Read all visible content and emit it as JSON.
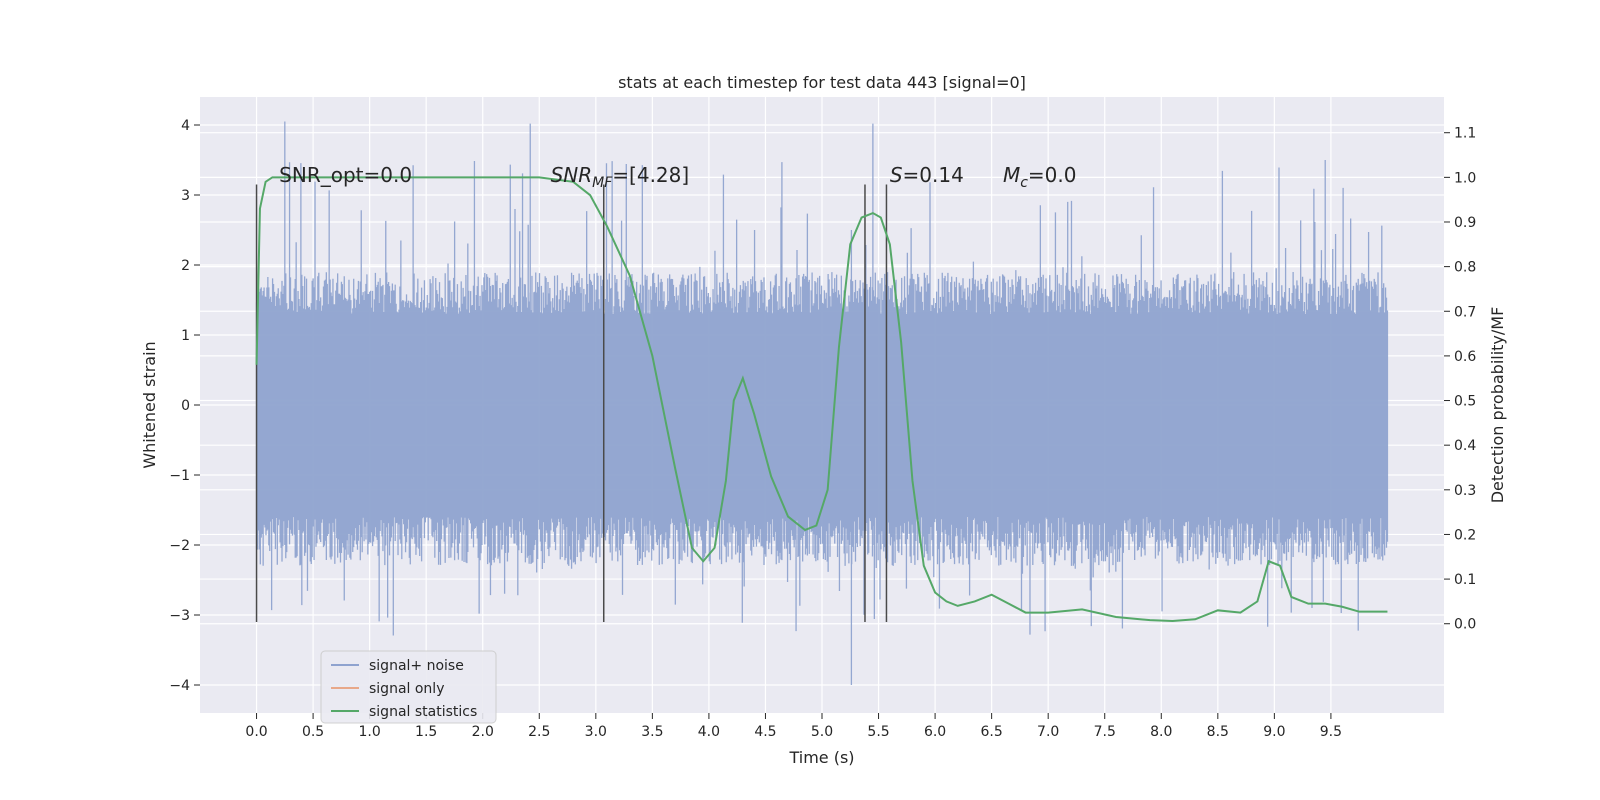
{
  "chart_data": {
    "type": "line",
    "title": "stats at each timestep for test data 443 [signal=0]",
    "xlabel": "Time (s)",
    "ylabel": "Whitened strain",
    "ylabel_right": "Detection probability/MF",
    "xlim": [
      -0.5,
      10.5
    ],
    "ylim": [
      -4.4,
      4.4
    ],
    "ylim_right": [
      -0.2,
      1.18
    ],
    "grid": true,
    "legend_position": "lower-left",
    "x_ticks": [
      0.0,
      0.5,
      1.0,
      1.5,
      2.0,
      2.5,
      3.0,
      3.5,
      4.0,
      4.5,
      5.0,
      5.5,
      6.0,
      6.5,
      7.0,
      7.5,
      8.0,
      8.5,
      9.0,
      9.5
    ],
    "x_tick_labels": [
      "0.0",
      "0.5",
      "1.0",
      "1.5",
      "2.0",
      "2.5",
      "3.0",
      "3.5",
      "4.0",
      "4.5",
      "5.0",
      "5.5",
      "6.0",
      "6.5",
      "7.0",
      "7.5",
      "8.0",
      "8.5",
      "9.0",
      "9.5"
    ],
    "y_ticks": [
      -4,
      -3,
      -2,
      -1,
      0,
      1,
      2,
      3,
      4
    ],
    "y_tick_labels": [
      "−4",
      "−3",
      "−2",
      "−1",
      "0",
      "1",
      "2",
      "3",
      "4"
    ],
    "y_right_ticks": [
      0.0,
      0.1,
      0.2,
      0.3,
      0.4,
      0.5,
      0.6,
      0.7,
      0.8,
      0.9,
      1.0,
      1.1
    ],
    "y_right_tick_labels": [
      "0.0",
      "0.1",
      "0.2",
      "0.3",
      "0.4",
      "0.5",
      "0.6",
      "0.7",
      "0.8",
      "0.9",
      "1.0",
      "1.1"
    ],
    "annotations": [
      {
        "text": "SNR_opt=0.0",
        "x": 0.2,
        "y": 3.3
      },
      {
        "text": "SNR",
        "sub": "MF",
        "suffix": "=[4.28]",
        "x": 2.6,
        "y": 3.3
      },
      {
        "text": "S",
        "suffix": "=0.14",
        "x": 5.6,
        "y": 3.3
      },
      {
        "text": "M",
        "sub": "c",
        "suffix": "=0.0",
        "x": 6.6,
        "y": 3.3
      }
    ],
    "vertical_lines": [
      0.0,
      3.07,
      5.38,
      5.57
    ],
    "vertical_line_range": [
      -3.1,
      3.15
    ],
    "series": [
      {
        "name": "signal+ noise",
        "color": "#8fa3cf",
        "kind": "noise",
        "x_range": [
          0.0,
          10.0
        ],
        "typical_range": [
          -1.6,
          1.3
        ],
        "extreme_range": [
          -4.0,
          4.05
        ],
        "peak_y": [
          4.05,
          4.02,
          4.02
        ],
        "peak_x": [
          0.25,
          2.42,
          5.45
        ]
      },
      {
        "name": "signal only",
        "color": "#e8a889",
        "values": []
      },
      {
        "name": "signal statistics",
        "color": "#55a868",
        "axis": "right",
        "x": [
          0.0,
          0.03,
          0.08,
          0.14,
          0.2,
          0.3,
          0.5,
          1.0,
          1.5,
          2.0,
          2.5,
          2.8,
          2.95,
          3.1,
          3.3,
          3.5,
          3.7,
          3.85,
          3.95,
          4.05,
          4.15,
          4.22,
          4.3,
          4.4,
          4.55,
          4.7,
          4.85,
          4.95,
          5.05,
          5.15,
          5.25,
          5.35,
          5.45,
          5.52,
          5.6,
          5.7,
          5.8,
          5.9,
          6.0,
          6.1,
          6.2,
          6.35,
          6.5,
          6.65,
          6.8,
          7.0,
          7.3,
          7.6,
          7.9,
          8.1,
          8.3,
          8.5,
          8.7,
          8.85,
          8.95,
          9.05,
          9.15,
          9.3,
          9.45,
          9.6,
          9.75,
          9.9,
          10.0
        ],
        "values": [
          0.58,
          0.93,
          0.99,
          1.0,
          1.0,
          1.0,
          1.0,
          1.0,
          1.0,
          1.0,
          1.0,
          0.99,
          0.96,
          0.89,
          0.78,
          0.6,
          0.35,
          0.17,
          0.14,
          0.17,
          0.32,
          0.5,
          0.55,
          0.47,
          0.33,
          0.24,
          0.21,
          0.22,
          0.3,
          0.62,
          0.85,
          0.91,
          0.92,
          0.91,
          0.85,
          0.63,
          0.32,
          0.13,
          0.07,
          0.05,
          0.04,
          0.05,
          0.065,
          0.045,
          0.025,
          0.025,
          0.032,
          0.015,
          0.008,
          0.006,
          0.01,
          0.03,
          0.025,
          0.05,
          0.14,
          0.13,
          0.06,
          0.045,
          0.045,
          0.038,
          0.027,
          0.027,
          0.027
        ]
      }
    ]
  }
}
